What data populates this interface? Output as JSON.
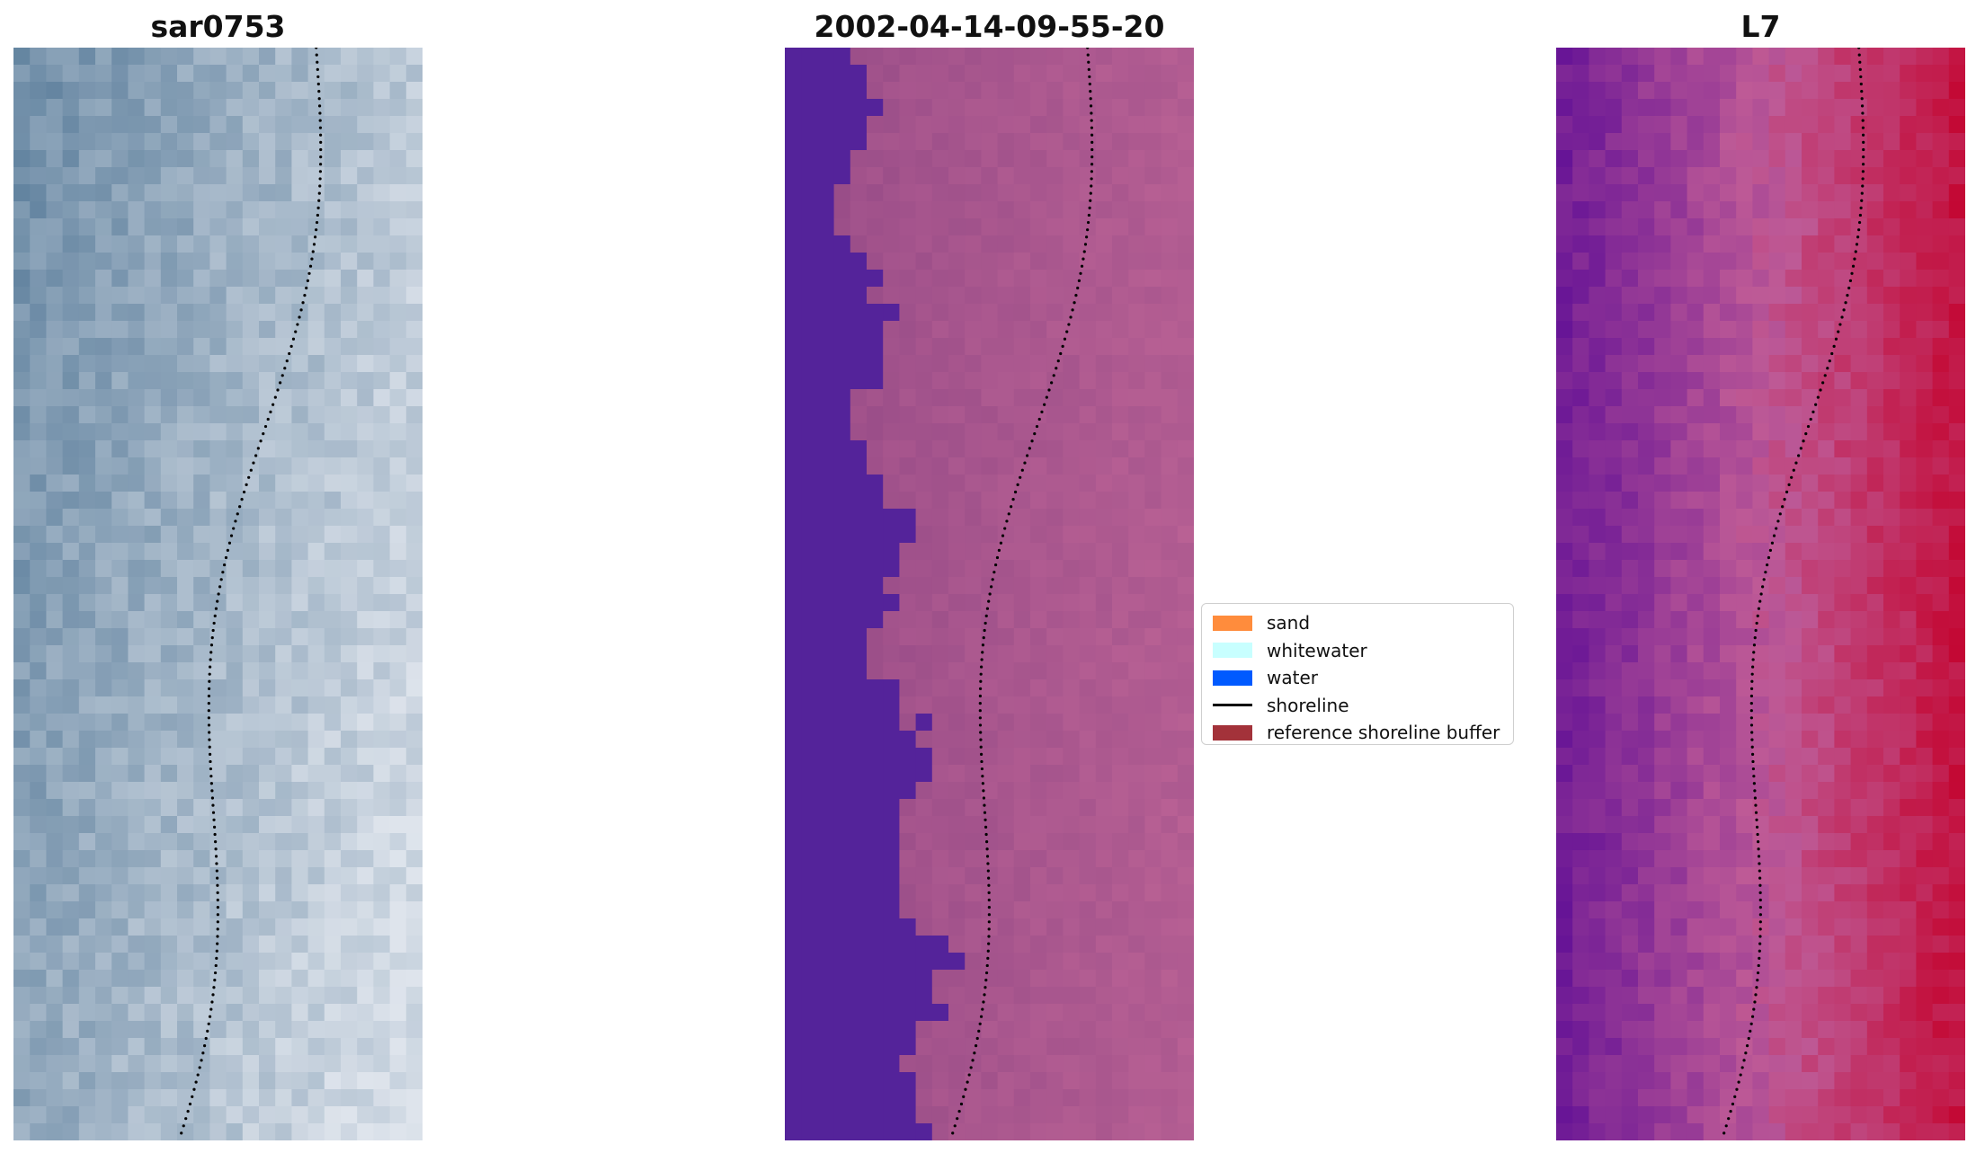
{
  "panels": [
    {
      "id": "rgb",
      "title": "sar0753",
      "palette": "rgb"
    },
    {
      "id": "classified",
      "title": "2002-04-14-09-55-20",
      "palette": "classified"
    },
    {
      "id": "index",
      "title": "L7",
      "palette": "index"
    }
  ],
  "colors": {
    "water_class": "#54239a",
    "land_class": "#a4558f",
    "sand": "#ff8c3c",
    "whitewater": "#c8ffff",
    "water": "#005aff",
    "shoreline": "#000000",
    "reference_buffer": "#a3323a"
  },
  "legend": {
    "items": [
      {
        "label": "sand",
        "type": "patch",
        "color": "#ff8c3c"
      },
      {
        "label": "whitewater",
        "type": "patch",
        "color": "#c8ffff"
      },
      {
        "label": "water",
        "type": "patch",
        "color": "#005aff"
      },
      {
        "label": "shoreline",
        "type": "line",
        "color": "#000000"
      },
      {
        "label": "reference shoreline buffer",
        "type": "patch",
        "color": "#a3323a"
      }
    ]
  }
}
